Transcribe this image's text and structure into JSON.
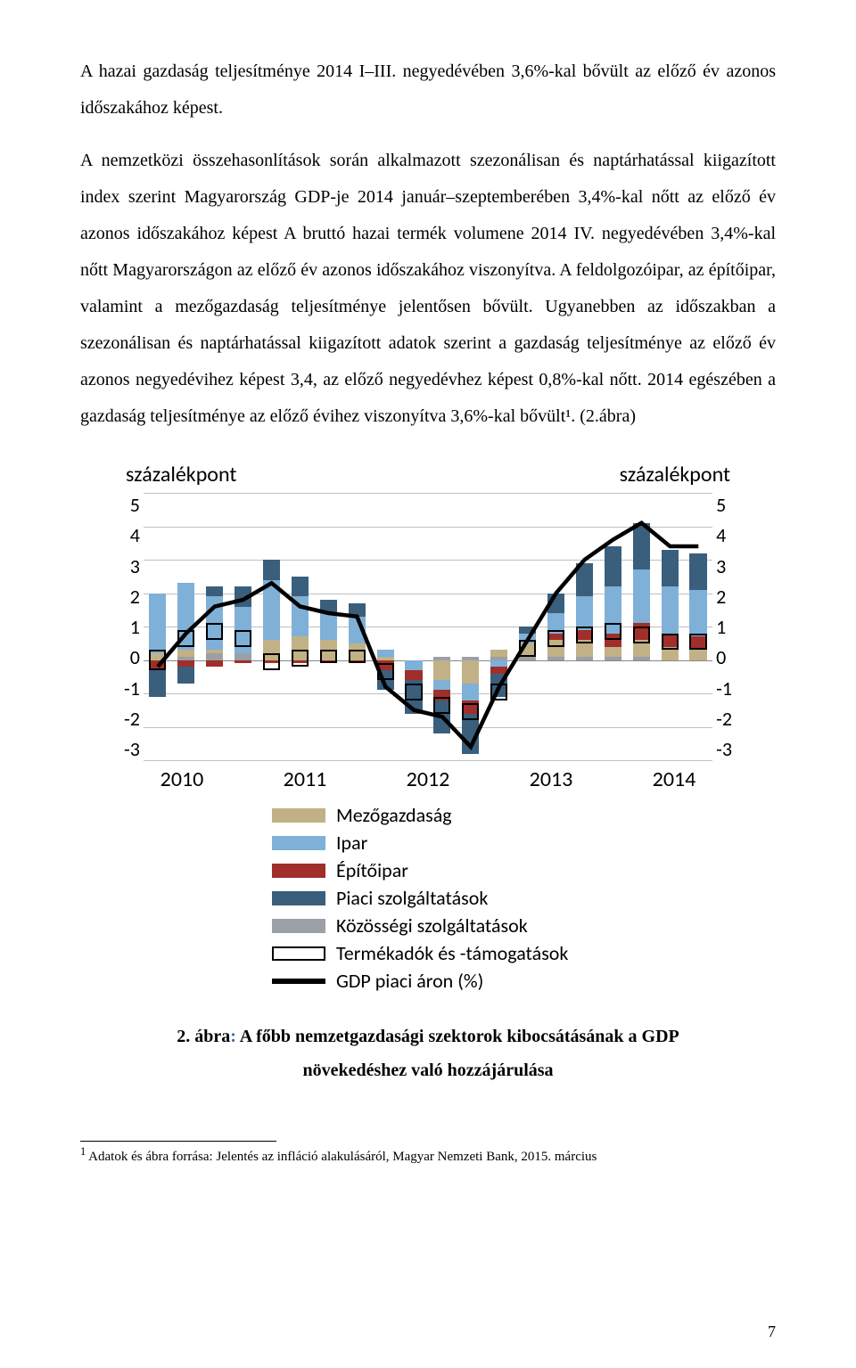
{
  "paragraphs": {
    "p1": "A hazai gazdaság teljesítménye 2014 I–III. negyedévében 3,6%-kal bővült az előző év azonos időszakához képest.",
    "p2": "A nemzetközi összehasonlítások során alkalmazott szezonálisan és naptárhatással kiigazított index szerint Magyarország GDP-je 2014 január–szeptemberében 3,4%-kal nőtt az előző év azonos időszakához képest A bruttó hazai termék volumene 2014 IV. negyedévében 3,4%-kal nőtt Magyarországon az előző év azonos időszakához viszonyítva. A feldolgozóipar, az építőipar, valamint a mezőgazdaság teljesítménye jelentősen bővült. Ugyanebben az időszakban a szezonálisan és naptárhatással kiigazított adatok szerint a gazdaság teljesítménye az előző év azonos negyedévihez képest 3,4, az előző negyedévhez képest 0,8%-kal nőtt. 2014 egészében a gazdaság teljesítménye az előző évihez viszonyítva 3,6%-kal bővült¹. (2.ábra)"
  },
  "chart": {
    "y_label_left": "százalékpont",
    "y_label_right": "százalékpont",
    "y_ticks": [
      "5",
      "4",
      "3",
      "2",
      "1",
      "0",
      "-1",
      "-2",
      "-3"
    ],
    "y_min": -3,
    "y_max": 5,
    "x_labels": [
      "2010",
      "2011",
      "2012",
      "2013",
      "2014"
    ],
    "colors": {
      "mezogazdasag": "#c2b186",
      "ipar": "#7fb0d7",
      "epitoipar": "#a02e2a",
      "piaci": "#3a5f7d",
      "kozossegi": "#9aa0a6",
      "outline_stroke": "#000000",
      "line": "#000000",
      "grid": "#bfbfbf",
      "background": "#ffffff"
    },
    "legend": {
      "mezogazdasag": "Mezőgazdaság",
      "ipar": "Ipar",
      "epitoipar": "Építőipar",
      "piaci": "Piaci szolgáltatások",
      "kozossegi": "Közösségi szolgáltatások",
      "termekadok": "Termékadók és -támogatások",
      "gdp": "GDP piaci áron (%)"
    },
    "quarters": [
      {
        "pos_mez": 0.2,
        "pos_ipar": 1.8,
        "pos_piaci": 0.0,
        "pos_koz": 0.0,
        "neg_ep": -0.3,
        "neg_piaci": -0.8,
        "outline": [
          -0.3,
          0.3
        ],
        "gdp": -0.2
      },
      {
        "pos_mez": 0.2,
        "pos_ipar": 2.0,
        "pos_piaci": 0.0,
        "pos_koz": 0.1,
        "neg_ep": -0.2,
        "neg_piaci": -0.5,
        "outline": [
          0.4,
          0.9
        ],
        "gdp": 0.8
      },
      {
        "pos_mez": 0.1,
        "pos_ipar": 1.6,
        "pos_piaci": 0.3,
        "pos_koz": 0.2,
        "neg_ep": -0.2,
        "neg_piaci": 0.0,
        "outline": [
          0.6,
          1.1
        ],
        "gdp": 1.6
      },
      {
        "pos_mez": 0.0,
        "pos_ipar": 1.4,
        "pos_piaci": 0.6,
        "pos_koz": 0.2,
        "neg_ep": -0.1,
        "neg_piaci": 0.0,
        "outline": [
          0.4,
          0.9
        ],
        "gdp": 1.8
      },
      {
        "pos_mez": 0.6,
        "pos_ipar": 1.8,
        "pos_piaci": 0.6,
        "pos_koz": 0.0,
        "neg_ep": -0.1,
        "neg_piaci": 0.0,
        "outline": [
          -0.3,
          0.2
        ],
        "gdp": 2.3
      },
      {
        "pos_mez": 0.7,
        "pos_ipar": 1.2,
        "pos_piaci": 0.6,
        "pos_koz": 0.0,
        "neg_ep": -0.1,
        "neg_piaci": 0.0,
        "outline": [
          -0.2,
          0.3
        ],
        "gdp": 1.6
      },
      {
        "pos_mez": 0.6,
        "pos_ipar": 0.8,
        "pos_piaci": 0.4,
        "pos_koz": 0.0,
        "neg_ep": -0.1,
        "neg_piaci": 0.0,
        "outline": [
          -0.1,
          0.3
        ],
        "gdp": 1.4
      },
      {
        "pos_mez": 0.5,
        "pos_ipar": 0.8,
        "pos_piaci": 0.4,
        "pos_koz": 0.0,
        "neg_ep": -0.1,
        "neg_piaci": 0.0,
        "outline": [
          -0.1,
          0.3
        ],
        "gdp": 1.3
      },
      {
        "pos_mez": 0.1,
        "pos_ipar": 0.2,
        "pos_piaci": 0.0,
        "pos_koz": 0.0,
        "neg_ep": -0.3,
        "neg_piaci": -0.6,
        "outline": [
          -0.6,
          -0.1
        ],
        "gdp": -0.8
      },
      {
        "pos_mez": 0.0,
        "pos_ipar": 0.0,
        "pos_piaci": 0.0,
        "pos_koz": 0.0,
        "neg_ep": -0.3,
        "neg_piaci": -1.0,
        "neg_ipar": -0.3,
        "outline": [
          -1.2,
          -0.7
        ],
        "gdp": -1.5
      },
      {
        "pos_mez": 0.0,
        "pos_ipar": 0.0,
        "pos_piaci": 0.0,
        "pos_koz": 0.1,
        "neg_ep": -0.3,
        "neg_piaci": -1.0,
        "neg_ipar": -0.3,
        "neg_mez": -0.6,
        "outline": [
          -1.6,
          -1.1
        ],
        "gdp": -1.7
      },
      {
        "pos_mez": 0.0,
        "pos_ipar": 0.0,
        "pos_piaci": 0.0,
        "pos_koz": 0.1,
        "neg_ep": -0.4,
        "neg_piaci": -1.2,
        "neg_ipar": -0.5,
        "neg_mez": -0.7,
        "outline": [
          -1.8,
          -1.3
        ],
        "gdp": -2.6
      },
      {
        "pos_mez": 0.2,
        "pos_ipar": 0.0,
        "pos_piaci": 0.0,
        "pos_koz": 0.1,
        "neg_ep": -0.2,
        "neg_piaci": -0.7,
        "neg_ipar": -0.2,
        "outline": [
          -1.2,
          -0.7
        ],
        "gdp": -0.8
      },
      {
        "pos_mez": 0.4,
        "pos_ipar": 0.3,
        "pos_piaci": 0.2,
        "pos_koz": 0.1,
        "neg_ep": 0.0,
        "neg_piaci": 0.0,
        "outline": [
          0.1,
          0.6
        ],
        "gdp": 0.6
      },
      {
        "pos_mez": 0.5,
        "pos_ipar": 0.6,
        "pos_piaci": 0.6,
        "pos_koz": 0.1,
        "neg_ep": 0.0,
        "neg_piaci": 0.0,
        "pos_ep": 0.2,
        "outline": [
          0.4,
          0.9
        ],
        "gdp": 2.0
      },
      {
        "pos_mez": 0.5,
        "pos_ipar": 1.0,
        "pos_piaci": 1.0,
        "pos_koz": 0.1,
        "pos_ep": 0.3,
        "neg_ep": 0.0,
        "neg_piaci": 0.0,
        "outline": [
          0.5,
          1.0
        ],
        "gdp": 3.0
      },
      {
        "pos_mez": 0.3,
        "pos_ipar": 1.4,
        "pos_piaci": 1.2,
        "pos_koz": 0.1,
        "pos_ep": 0.4,
        "neg_ep": 0.0,
        "neg_piaci": 0.0,
        "outline": [
          0.6,
          1.1
        ],
        "gdp": 3.6
      },
      {
        "pos_mez": 0.5,
        "pos_ipar": 1.6,
        "pos_piaci": 1.4,
        "pos_koz": 0.1,
        "pos_ep": 0.5,
        "neg_ep": 0.0,
        "neg_piaci": 0.0,
        "outline": [
          0.5,
          1.0
        ],
        "gdp": 4.1
      },
      {
        "pos_mez": 0.4,
        "pos_ipar": 1.4,
        "pos_piaci": 1.1,
        "pos_koz": 0.0,
        "pos_ep": 0.4,
        "neg_ep": 0.0,
        "neg_piaci": 0.0,
        "outline": [
          0.3,
          0.8
        ],
        "gdp": 3.4
      },
      {
        "pos_mez": 0.3,
        "pos_ipar": 1.4,
        "pos_piaci": 1.1,
        "pos_koz": 0.0,
        "pos_ep": 0.4,
        "neg_ep": 0.0,
        "neg_piaci": 0.0,
        "outline": [
          0.3,
          0.8
        ],
        "gdp": 3.4
      }
    ]
  },
  "caption": {
    "num": "2.",
    "label": "ábra",
    "title_l1": "A főbb nemzetgazdasági szektorok kibocsátásának a GDP",
    "title_l2": "növekedéshez való hozzájárulása"
  },
  "footnote": {
    "marker": "1",
    "text": " Adatok és ábra forrása: Jelentés az infláció alakulásáról, Magyar Nemzeti Bank, 2015. március"
  },
  "page_number": "7"
}
